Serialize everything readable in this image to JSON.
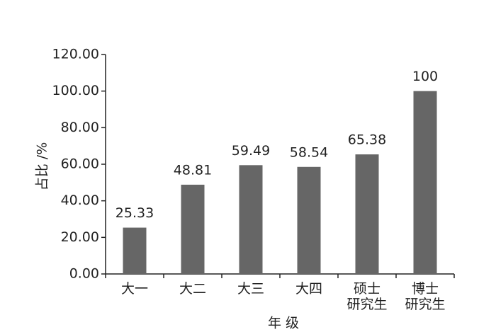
{
  "chart_data": {
    "type": "bar",
    "y_label": "占比 /%",
    "x_label": "年 级",
    "categories": [
      "大一",
      "大二",
      "大三",
      "大四",
      "硕士\n研究生",
      "博士\n研究生"
    ],
    "values": [
      25.33,
      48.81,
      59.49,
      58.54,
      65.38,
      100
    ],
    "color": "#666666",
    "ylim": [
      0,
      120
    ],
    "yticks": [
      {
        "value": 0,
        "label": "0.00"
      },
      {
        "value": 20,
        "label": "20.00"
      },
      {
        "value": 40,
        "label": "40.00"
      },
      {
        "value": 60,
        "label": "60.00"
      },
      {
        "value": 80,
        "label": "80.00"
      },
      {
        "value": 100,
        "label": "100.00"
      },
      {
        "value": 120,
        "label": "120.00"
      }
    ],
    "grid": false
  }
}
